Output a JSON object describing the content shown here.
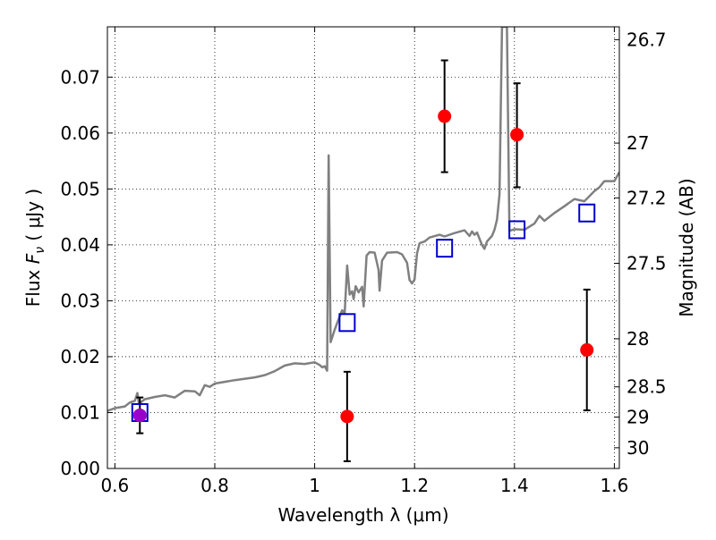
{
  "chart_data": {
    "type": "scatter",
    "xlabel": "Wavelength  λ (μm)",
    "ylabel": "Flux  F_ν  ( μJy )",
    "ylabel_right": "Magnitude (AB)",
    "xlim": [
      0.585,
      1.61
    ],
    "ylim": [
      0.0,
      0.079
    ],
    "grid": true,
    "x_ticks": [
      0.6,
      0.8,
      1.0,
      1.2,
      1.4,
      1.6
    ],
    "x_tick_labels": [
      "0.6",
      "0.8",
      "1",
      "1.2",
      "1.4",
      "1.6"
    ],
    "y_ticks": [
      0.0,
      0.01,
      0.02,
      0.03,
      0.04,
      0.05,
      0.06,
      0.07
    ],
    "y_tick_labels": [
      "0.00",
      "0.01",
      "0.02",
      "0.03",
      "0.04",
      "0.05",
      "0.06",
      "0.07"
    ],
    "magnitude_ticks": [
      {
        "label": "26.7",
        "flux": 0.0767
      },
      {
        "label": "27",
        "flux": 0.0582
      },
      {
        "label": "27.2",
        "flux": 0.0484
      },
      {
        "label": "27.5",
        "flux": 0.0367
      },
      {
        "label": "28",
        "flux": 0.0232
      },
      {
        "label": "28.5",
        "flux": 0.0146
      },
      {
        "label": "29",
        "flux": 0.0092
      },
      {
        "label": "30",
        "flux": 0.0037
      }
    ],
    "colors": {
      "model_spectrum": "#808080",
      "observed_points": "#ff0000",
      "model_photometry": "#0000cc",
      "highlight_point": "#9900cc"
    },
    "series": [
      {
        "kind": "line",
        "points": [
          [
            0.585,
            0.0103
          ],
          [
            0.6,
            0.0108
          ],
          [
            0.62,
            0.0111
          ],
          [
            0.63,
            0.0118
          ],
          [
            0.64,
            0.0121
          ],
          [
            0.645,
            0.0135
          ],
          [
            0.648,
            0.0116
          ],
          [
            0.66,
            0.0124
          ],
          [
            0.68,
            0.0128
          ],
          [
            0.7,
            0.0131
          ],
          [
            0.72,
            0.0127
          ],
          [
            0.74,
            0.0139
          ],
          [
            0.76,
            0.0138
          ],
          [
            0.77,
            0.0131
          ],
          [
            0.78,
            0.0149
          ],
          [
            0.79,
            0.0146
          ],
          [
            0.8,
            0.0152
          ],
          [
            0.84,
            0.0158
          ],
          [
            0.88,
            0.0163
          ],
          [
            0.9,
            0.0167
          ],
          [
            0.92,
            0.0174
          ],
          [
            0.94,
            0.0184
          ],
          [
            0.96,
            0.0188
          ],
          [
            0.98,
            0.0187
          ],
          [
            1.0,
            0.019
          ],
          [
            1.01,
            0.0185
          ],
          [
            1.015,
            0.0181
          ],
          [
            1.02,
            0.0183
          ],
          [
            1.025,
            0.0175
          ],
          [
            1.028,
            0.056
          ],
          [
            1.032,
            0.0226
          ],
          [
            1.04,
            0.0248
          ],
          [
            1.05,
            0.0272
          ],
          [
            1.055,
            0.0283
          ],
          [
            1.06,
            0.0277
          ],
          [
            1.065,
            0.0363
          ],
          [
            1.07,
            0.0311
          ],
          [
            1.075,
            0.0317
          ],
          [
            1.078,
            0.0303
          ],
          [
            1.082,
            0.0326
          ],
          [
            1.088,
            0.0315
          ],
          [
            1.095,
            0.0325
          ],
          [
            1.098,
            0.029
          ],
          [
            1.104,
            0.0381
          ],
          [
            1.11,
            0.0387
          ],
          [
            1.12,
            0.0386
          ],
          [
            1.128,
            0.0355
          ],
          [
            1.13,
            0.0318
          ],
          [
            1.135,
            0.0372
          ],
          [
            1.145,
            0.0386
          ],
          [
            1.165,
            0.0387
          ],
          [
            1.175,
            0.0383
          ],
          [
            1.185,
            0.0368
          ],
          [
            1.19,
            0.0337
          ],
          [
            1.195,
            0.0331
          ],
          [
            1.2,
            0.0338
          ],
          [
            1.205,
            0.0385
          ],
          [
            1.21,
            0.0403
          ],
          [
            1.22,
            0.0406
          ],
          [
            1.23,
            0.0413
          ],
          [
            1.25,
            0.0418
          ],
          [
            1.26,
            0.0415
          ],
          [
            1.28,
            0.0421
          ],
          [
            1.3,
            0.0426
          ],
          [
            1.31,
            0.0416
          ],
          [
            1.315,
            0.0424
          ],
          [
            1.32,
            0.0418
          ],
          [
            1.325,
            0.0422
          ],
          [
            1.335,
            0.04
          ],
          [
            1.34,
            0.0393
          ],
          [
            1.345,
            0.0406
          ],
          [
            1.355,
            0.0416
          ],
          [
            1.36,
            0.0427
          ],
          [
            1.365,
            0.0445
          ],
          [
            1.37,
            0.049
          ],
          [
            1.375,
            0.079
          ],
          [
            1.385,
            0.079
          ],
          [
            1.39,
            0.0425
          ],
          [
            1.4,
            0.0428
          ],
          [
            1.42,
            0.0427
          ],
          [
            1.44,
            0.0438
          ],
          [
            1.45,
            0.0452
          ],
          [
            1.46,
            0.0443
          ],
          [
            1.48,
            0.0457
          ],
          [
            1.5,
            0.0469
          ],
          [
            1.52,
            0.0482
          ],
          [
            1.54,
            0.0478
          ],
          [
            1.55,
            0.0487
          ],
          [
            1.56,
            0.0496
          ],
          [
            1.57,
            0.0503
          ],
          [
            1.58,
            0.0514
          ],
          [
            1.6,
            0.0514
          ],
          [
            1.61,
            0.053
          ]
        ]
      },
      {
        "kind": "errorbar",
        "points": [
          {
            "x": 0.65,
            "y": 0.0095,
            "lo": 0.0063,
            "hi": 0.0127
          },
          {
            "x": 1.065,
            "y": 0.0093,
            "lo": 0.0013,
            "hi": 0.0173
          },
          {
            "x": 1.26,
            "y": 0.063,
            "lo": 0.053,
            "hi": 0.073
          },
          {
            "x": 1.405,
            "y": 0.0597,
            "lo": 0.0503,
            "hi": 0.0689
          },
          {
            "x": 1.545,
            "y": 0.0212,
            "lo": 0.0104,
            "hi": 0.032
          }
        ]
      },
      {
        "kind": "squares",
        "points": [
          [
            0.65,
            0.01
          ],
          [
            1.065,
            0.0261
          ],
          [
            1.26,
            0.0394
          ],
          [
            1.405,
            0.0427
          ],
          [
            1.545,
            0.0457
          ]
        ]
      },
      {
        "kind": "highlight",
        "points": [
          [
            0.65,
            0.0095
          ]
        ]
      }
    ]
  }
}
